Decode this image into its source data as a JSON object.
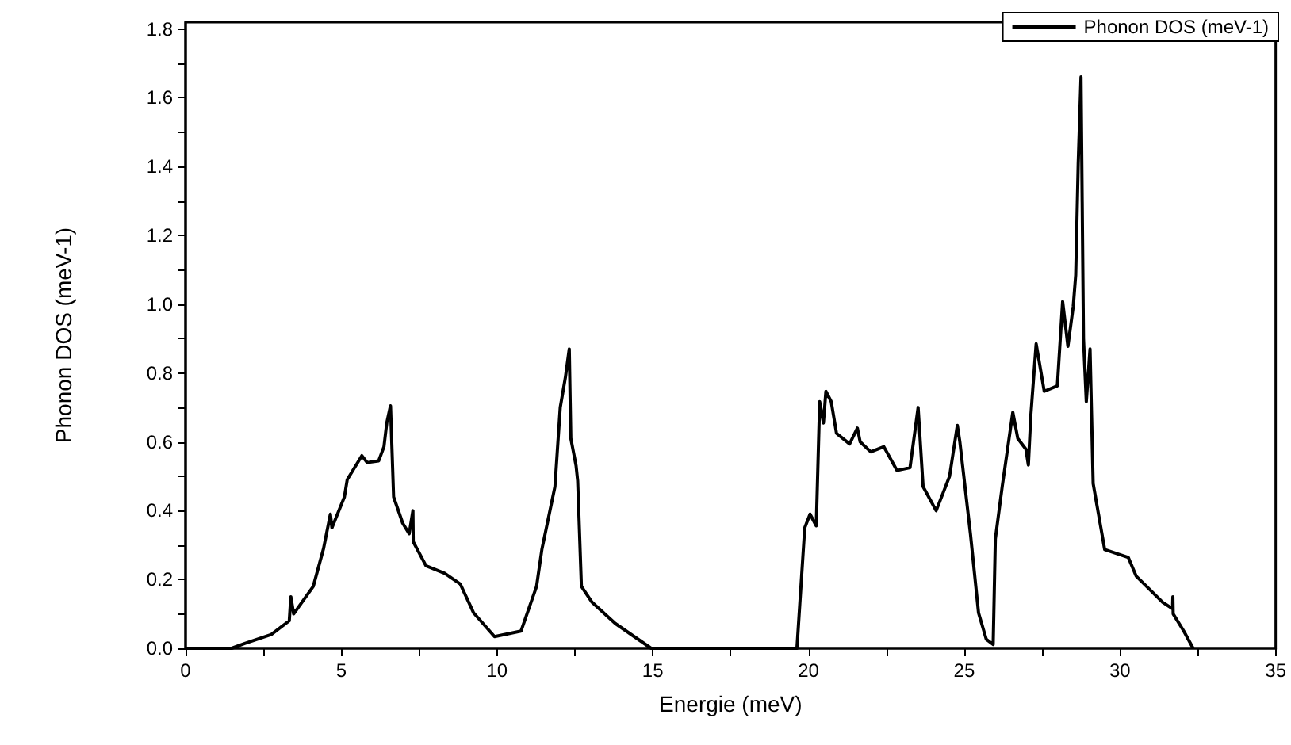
{
  "chart_data": {
    "type": "line",
    "xlabel": "Energie (meV)",
    "ylabel": "Phonon DOS (meV-1)",
    "xlim": [
      0,
      35
    ],
    "xticks": [
      0,
      {
        "value": 2.5,
        "label": null
      },
      5,
      {
        "value": 7.5,
        "label": null
      },
      10,
      {
        "value": 12.5,
        "label": null
      },
      15,
      {
        "value": 17.5,
        "label": null
      },
      20,
      {
        "value": 22.5,
        "label": null
      },
      25,
      {
        "value": 27.5,
        "label": null
      },
      30,
      {
        "value": 32.5,
        "label": null
      },
      35
    ],
    "ylim": [
      0,
      1.82
    ],
    "yticks": [
      {
        "value": 0,
        "label": "0.0"
      },
      {
        "value": 0.1,
        "label": null
      },
      0.2,
      {
        "value": 0.3,
        "label": null
      },
      0.4,
      {
        "value": 0.5,
        "label": null
      },
      0.6,
      {
        "value": 0.7,
        "label": null
      },
      0.8,
      {
        "value": 0.9,
        "label": null
      },
      {
        "value": 1,
        "label": "1.0"
      },
      {
        "value": 1.1,
        "label": null
      },
      1.2,
      {
        "value": 1.3,
        "label": null
      },
      1.4,
      {
        "value": 1.5,
        "label": null
      },
      1.6,
      {
        "value": 1.7,
        "label": null
      },
      1.8
    ],
    "grid": false,
    "legend": "top right",
    "marker": "none",
    "line_style": "solid",
    "series": [
      {
        "name": "Phonon DOS (meV-1)",
        "color": "#000000",
        "x": [
          0,
          1.48,
          1.9,
          2.75,
          3.33,
          3.38,
          3.47,
          4.1,
          4.43,
          4.65,
          4.7,
          5.1,
          5.19,
          5.66,
          5.83,
          6.2,
          6.37,
          6.46,
          6.58,
          6.68,
          6.97,
          7.18,
          7.3,
          7.31,
          7.72,
          8.32,
          8.82,
          9.25,
          9.92,
          10.77,
          11.27,
          11.44,
          11.86,
          12.03,
          12.2,
          12.32,
          12.37,
          12.54,
          12.59,
          12.71,
          13.05,
          13.8,
          14.95,
          19.63,
          19.88,
          20.05,
          20.25,
          20.36,
          20.48,
          20.56,
          20.73,
          20.9,
          21.32,
          21.57,
          21.66,
          22.0,
          22.42,
          22.84,
          23.26,
          23.52,
          23.68,
          24.1,
          24.53,
          24.78,
          24.86,
          25.2,
          25.46,
          25.71,
          25.93,
          26.0,
          26.22,
          26.56,
          26.72,
          26.98,
          27.06,
          27.14,
          27.31,
          27.57,
          27.99,
          28.16,
          28.33,
          28.5,
          28.58,
          28.66,
          28.75,
          28.83,
          28.92,
          29.04,
          29.14,
          29.51,
          30.27,
          30.52,
          31.37,
          31.69,
          31.7,
          31.71,
          32.05,
          32.35
        ],
        "values": [
          0,
          0,
          0.014,
          0.04,
          0.08,
          0.15,
          0.1,
          0.18,
          0.29,
          0.39,
          0.35,
          0.44,
          0.49,
          0.56,
          0.54,
          0.545,
          0.586,
          0.655,
          0.705,
          0.44,
          0.364,
          0.333,
          0.4,
          0.31,
          0.24,
          0.218,
          0.187,
          0.103,
          0.034,
          0.05,
          0.18,
          0.287,
          0.47,
          0.7,
          0.79,
          0.87,
          0.61,
          0.53,
          0.487,
          0.18,
          0.134,
          0.072,
          0,
          0,
          0.35,
          0.39,
          0.356,
          0.717,
          0.655,
          0.747,
          0.717,
          0.625,
          0.594,
          0.64,
          0.6,
          0.571,
          0.586,
          0.517,
          0.525,
          0.7,
          0.47,
          0.4,
          0.5,
          0.648,
          0.6,
          0.333,
          0.103,
          0.026,
          0.011,
          0.318,
          0.47,
          0.686,
          0.61,
          0.579,
          0.533,
          0.678,
          0.885,
          0.747,
          0.763,
          1.008,
          0.878,
          0.993,
          1.085,
          1.407,
          1.661,
          0.9,
          0.717,
          0.87,
          0.479,
          0.287,
          0.264,
          0.21,
          0.134,
          0.115,
          0.15,
          0.1,
          0.05,
          0
        ]
      }
    ]
  }
}
